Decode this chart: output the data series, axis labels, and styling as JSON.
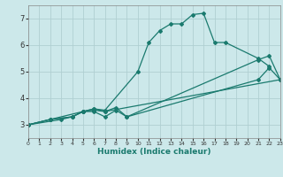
{
  "xlabel": "Humidex (Indice chaleur)",
  "xlim": [
    0,
    23
  ],
  "ylim": [
    2.5,
    7.5
  ],
  "yticks": [
    3,
    4,
    5,
    6,
    7
  ],
  "xticks": [
    0,
    1,
    2,
    3,
    4,
    5,
    6,
    7,
    8,
    9,
    10,
    11,
    12,
    13,
    14,
    15,
    16,
    17,
    18,
    19,
    20,
    21,
    22,
    23
  ],
  "bg_color": "#cce8ea",
  "grid_color": "#b0cfd2",
  "line_color": "#1a7a6e",
  "lines": [
    {
      "x": [
        0,
        2,
        4,
        5,
        6,
        7,
        10,
        11,
        12,
        13,
        14,
        15,
        16,
        17,
        18,
        21,
        22
      ],
      "y": [
        3.0,
        3.2,
        3.3,
        3.5,
        3.6,
        3.55,
        5.0,
        6.1,
        6.55,
        6.8,
        6.8,
        7.15,
        7.2,
        6.1,
        6.1,
        5.5,
        5.2
      ]
    },
    {
      "x": [
        0,
        2,
        4,
        5,
        6,
        7,
        8,
        9,
        21,
        22,
        23
      ],
      "y": [
        3.0,
        3.2,
        3.3,
        3.5,
        3.55,
        3.5,
        3.65,
        3.3,
        5.45,
        5.6,
        4.7
      ]
    },
    {
      "x": [
        0,
        3,
        4,
        5,
        6,
        7,
        8,
        9,
        21,
        22,
        23
      ],
      "y": [
        3.0,
        3.2,
        3.3,
        3.5,
        3.5,
        3.3,
        3.55,
        3.3,
        4.7,
        5.15,
        4.7
      ]
    },
    {
      "x": [
        0,
        2,
        5,
        6,
        7,
        23
      ],
      "y": [
        3.0,
        3.2,
        3.5,
        3.6,
        3.5,
        4.7
      ]
    }
  ]
}
